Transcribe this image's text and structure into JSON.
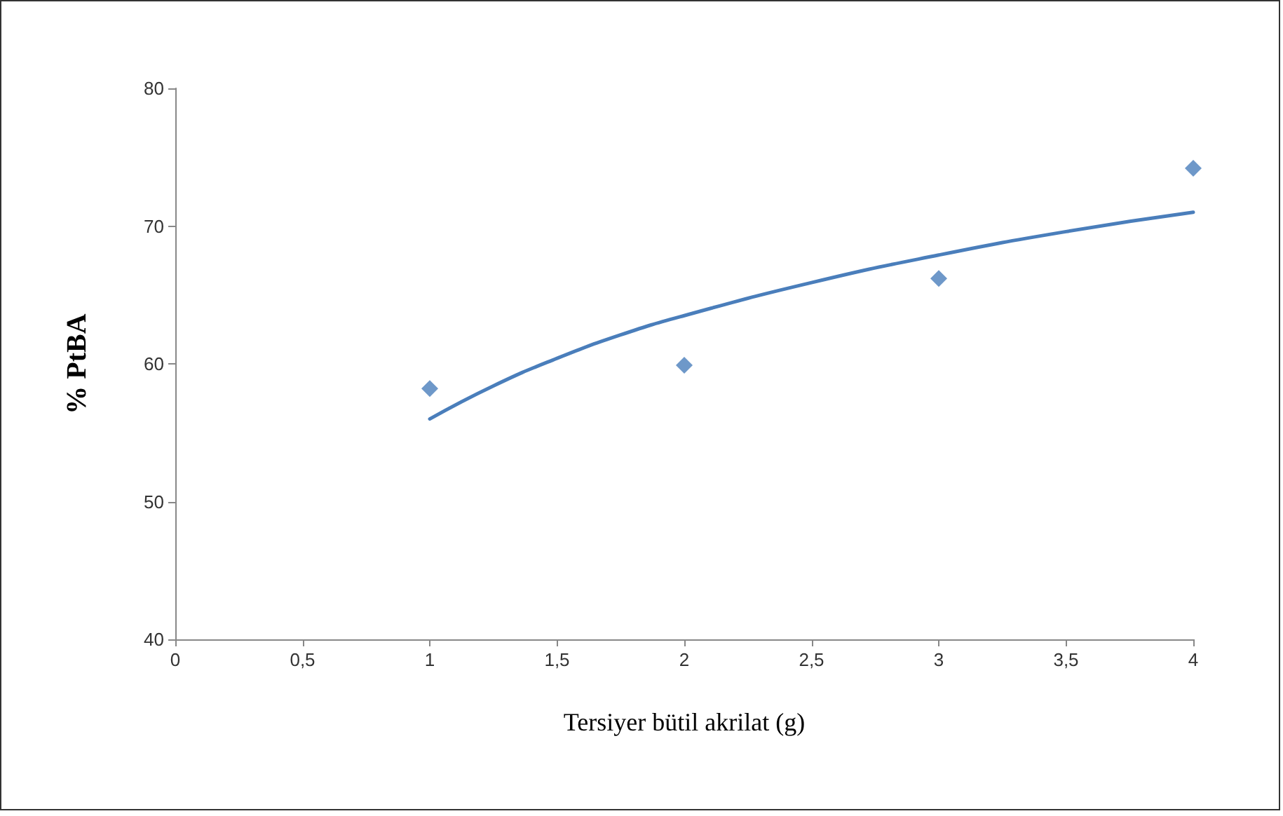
{
  "chart_data": {
    "type": "scatter",
    "xlabel": "Tersiyer bütil akrilat (g)",
    "ylabel": "% PtBA",
    "x": [
      1,
      2,
      3,
      4
    ],
    "series": [
      {
        "color": "#4a7ebb",
        "marker": "diamond",
        "values": [
          58.2,
          59.9,
          66.2,
          74.2
        ]
      },
      {
        "type": "line",
        "color": "#4a7ebb",
        "marker": "none",
        "line_style": "solid",
        "x": [
          1,
          1.25,
          1.5,
          1.75,
          2,
          2.5,
          3,
          3.5,
          4
        ],
        "values": [
          56.0,
          58.4,
          60.4,
          62.1,
          63.5,
          65.9,
          67.9,
          69.6,
          71.0
        ]
      }
    ],
    "xlim": [
      0,
      4
    ],
    "xticks": [
      0,
      {
        "value": 0.5,
        "label": "0,5"
      },
      1,
      {
        "value": 1.5,
        "label": "1,5"
      },
      2,
      {
        "value": 2.5,
        "label": "2,5"
      },
      3,
      {
        "value": 3.5,
        "label": "3,5"
      },
      4
    ],
    "ylim": [
      40,
      80
    ],
    "yticks": [
      40,
      50,
      60,
      70,
      80
    ],
    "grid": false
  }
}
